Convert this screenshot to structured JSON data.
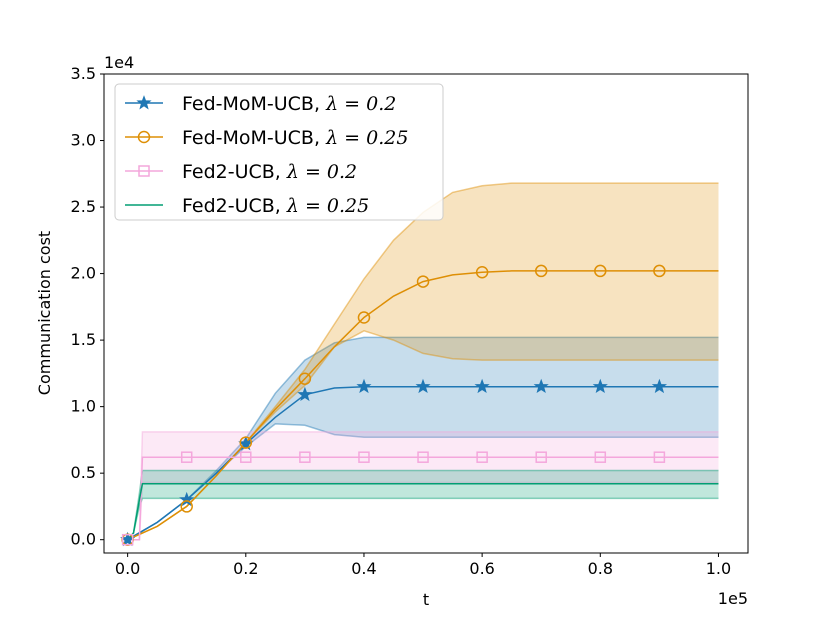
{
  "chart_data": {
    "type": "line",
    "xlabel": "t",
    "ylabel": "Communication cost",
    "x_scale_label": "1e5",
    "y_scale_label": "1e4",
    "xlim": [
      -0.04,
      1.05
    ],
    "ylim": [
      -0.1,
      3.5
    ],
    "x_ticks": [
      0.0,
      0.2,
      0.4,
      0.6,
      0.8,
      1.0
    ],
    "x_tick_labels": [
      "0.0",
      "0.2",
      "0.4",
      "0.6",
      "0.8",
      "1.0"
    ],
    "y_ticks": [
      0.0,
      0.5,
      1.0,
      1.5,
      2.0,
      2.5,
      3.0,
      3.5
    ],
    "y_tick_labels": [
      "0.0",
      "0.5",
      "1.0",
      "1.5",
      "2.0",
      "2.5",
      "3.0",
      "3.5"
    ],
    "legend_position": "upper-left",
    "marker_x": [
      0.0,
      0.1,
      0.2,
      0.3,
      0.4,
      0.5,
      0.6,
      0.7,
      0.8,
      0.9
    ],
    "series": [
      {
        "name": "Fed-MoM-UCB",
        "lambda_label": "λ = 0.2",
        "color": "#1f77b4",
        "marker": "star",
        "x": [
          0.0,
          0.05,
          0.1,
          0.15,
          0.2,
          0.25,
          0.3,
          0.35,
          0.4,
          0.45,
          0.5,
          0.6,
          0.7,
          0.8,
          0.9,
          1.0
        ],
        "mean": [
          0.0,
          0.13,
          0.3,
          0.5,
          0.72,
          0.92,
          1.09,
          1.14,
          1.15,
          1.15,
          1.15,
          1.15,
          1.15,
          1.15,
          1.15,
          1.15
        ],
        "upper": [
          0.0,
          0.13,
          0.3,
          0.52,
          0.76,
          1.1,
          1.35,
          1.48,
          1.52,
          1.52,
          1.52,
          1.52,
          1.52,
          1.52,
          1.52,
          1.52
        ],
        "lower": [
          0.0,
          0.13,
          0.3,
          0.5,
          0.7,
          0.87,
          0.86,
          0.79,
          0.77,
          0.77,
          0.77,
          0.77,
          0.77,
          0.77,
          0.77,
          0.77
        ]
      },
      {
        "name": "Fed-MoM-UCB",
        "lambda_label": "λ = 0.25",
        "color": "#de8f05",
        "marker": "circle",
        "x": [
          0.0,
          0.05,
          0.1,
          0.15,
          0.2,
          0.25,
          0.3,
          0.35,
          0.4,
          0.45,
          0.5,
          0.55,
          0.6,
          0.65,
          0.7,
          0.8,
          0.9,
          1.0
        ],
        "mean": [
          0.0,
          0.1,
          0.25,
          0.48,
          0.73,
          0.98,
          1.21,
          1.45,
          1.67,
          1.83,
          1.94,
          1.99,
          2.01,
          2.02,
          2.02,
          2.02,
          2.02,
          2.02
        ],
        "upper": [
          0.0,
          0.1,
          0.25,
          0.48,
          0.73,
          1.0,
          1.28,
          1.62,
          1.96,
          2.25,
          2.46,
          2.61,
          2.66,
          2.68,
          2.68,
          2.68,
          2.68,
          2.68
        ],
        "lower": [
          0.0,
          0.1,
          0.25,
          0.48,
          0.73,
          0.96,
          1.16,
          1.45,
          1.57,
          1.5,
          1.4,
          1.36,
          1.35,
          1.35,
          1.35,
          1.35,
          1.35,
          1.35
        ]
      },
      {
        "name": "Fed2-UCB",
        "lambda_label": "λ = 0.2",
        "color": "#f4a7dc",
        "marker": "square",
        "x": [
          0.0,
          0.02,
          0.025,
          0.1,
          0.3,
          0.5,
          0.7,
          0.9,
          1.0
        ],
        "mean": [
          0.0,
          0.0,
          0.62,
          0.62,
          0.62,
          0.62,
          0.62,
          0.62,
          0.62
        ],
        "upper": [
          0.0,
          0.0,
          0.81,
          0.81,
          0.81,
          0.81,
          0.81,
          0.81,
          0.81
        ],
        "lower": [
          0.0,
          0.0,
          0.43,
          0.43,
          0.43,
          0.43,
          0.43,
          0.43,
          0.43
        ]
      },
      {
        "name": "Fed2-UCB",
        "lambda_label": "λ = 0.25",
        "color": "#029e73",
        "marker": "none",
        "x": [
          0.0,
          0.01,
          0.02,
          0.025,
          0.1,
          0.3,
          0.5,
          0.7,
          0.9,
          1.0
        ],
        "mean": [
          0.0,
          0.05,
          0.3,
          0.42,
          0.42,
          0.42,
          0.42,
          0.42,
          0.42,
          0.42
        ],
        "upper": [
          0.0,
          0.05,
          0.35,
          0.52,
          0.52,
          0.52,
          0.52,
          0.52,
          0.52,
          0.52
        ],
        "lower": [
          0.0,
          0.05,
          0.25,
          0.31,
          0.31,
          0.31,
          0.31,
          0.31,
          0.31,
          0.31
        ]
      }
    ]
  }
}
